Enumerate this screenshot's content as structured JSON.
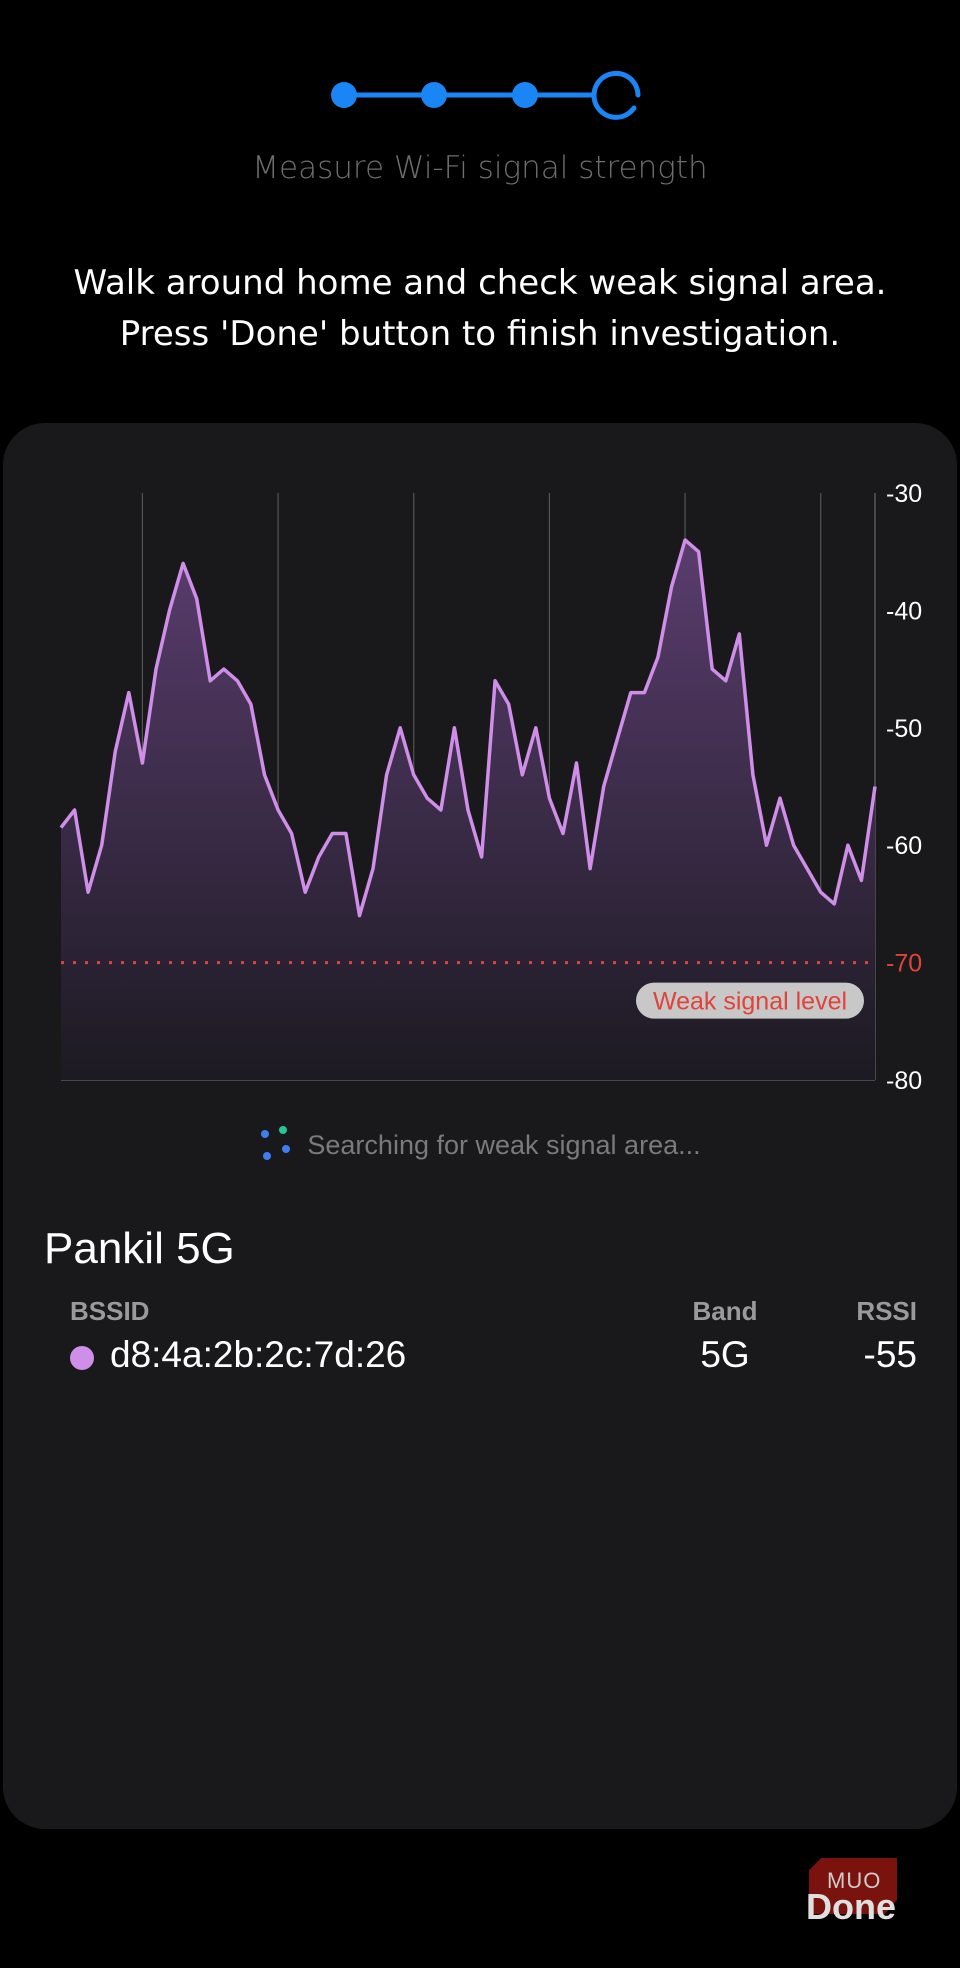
{
  "stepper": {
    "total_steps": 4,
    "completed_steps": 3,
    "current_step": 4,
    "accent": "#1a86f5"
  },
  "header": {
    "subtitle": "Measure Wi-Fi signal strength",
    "instruction_line1": "Walk around home and check weak signal area.",
    "instruction_line2": "Press 'Done' button to finish investigation."
  },
  "chart_data": {
    "type": "area",
    "title": "",
    "xlabel": "",
    "ylabel": "",
    "ylim": [
      -80,
      -30
    ],
    "yticks": [
      "-30",
      "-40",
      "-50",
      "-60",
      "-70",
      "-80"
    ],
    "y_axis_position": "right",
    "vertical_grid_every": 10,
    "vertical_grid_offset": 6,
    "line_color": "#cf8ee8",
    "threshold": {
      "value": -70,
      "label": "Weak signal level",
      "color": "#e0433a"
    },
    "values": [
      -58.5,
      -57,
      -64,
      -60,
      -52,
      -47,
      -53,
      -45,
      -40,
      -36,
      -39,
      -46,
      -45,
      -46,
      -48,
      -54,
      -57,
      -59,
      -64,
      -61,
      -59,
      -59,
      -66,
      -62,
      -54,
      -50,
      -54,
      -56,
      -57,
      -50,
      -57,
      -61,
      -46,
      -48,
      -54,
      -50,
      -56,
      -59,
      -53,
      -62,
      -55,
      -51,
      -47,
      -47,
      -44,
      -38,
      -34,
      -35,
      -45,
      -46,
      -42,
      -54,
      -60,
      -56,
      -60,
      -62,
      -64,
      -65,
      -60,
      -63,
      -55
    ]
  },
  "status": {
    "searching_text": "Searching for weak signal area..."
  },
  "network": {
    "ssid": "Pankil 5G",
    "columns": {
      "bssid": "BSSID",
      "band": "Band",
      "rssi": "RSSI"
    },
    "rows": [
      {
        "bssid": "d8:4a:2b:2c:7d:26",
        "band": "5G",
        "rssi": "-55",
        "color": "#cf8ee8"
      }
    ]
  },
  "footer": {
    "done_label": "Done",
    "watermark": "MUO"
  }
}
